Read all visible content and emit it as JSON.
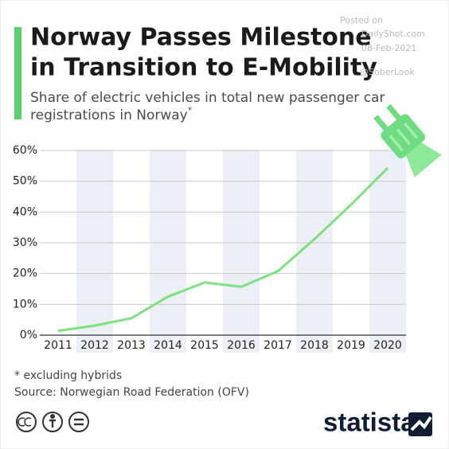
{
  "chart_data": {
    "type": "line",
    "title_lines": [
      "Norway Passes Milestone",
      "in Transition to E-Mobility"
    ],
    "subtitle_lines": [
      "Share of electric vehicles in total new passenger car",
      "registrations in Norway"
    ],
    "subtitle_marker": "*",
    "categories": [
      "2011",
      "2012",
      "2013",
      "2014",
      "2015",
      "2016",
      "2017",
      "2018",
      "2019",
      "2020"
    ],
    "values": [
      1.4,
      3.1,
      5.5,
      12.5,
      17.1,
      15.7,
      20.8,
      31.2,
      42.4,
      54.3
    ],
    "color": "#7fe07f",
    "ylim": [
      0,
      60
    ],
    "yticks": [
      {
        "value": 0,
        "label": "0%"
      },
      {
        "value": 10,
        "label": "10%"
      },
      {
        "value": 20,
        "label": "20%"
      },
      {
        "value": 30,
        "label": "30%"
      },
      {
        "value": 40,
        "label": "40%"
      },
      {
        "value": 50,
        "label": "50%"
      },
      {
        "value": 60,
        "label": "60%"
      }
    ],
    "grid": true,
    "footnote": "* excluding hybrids",
    "source": "Source: Norwegian Road Federation (OFV)"
  },
  "watermark": [
    "Posted on",
    "DailyShot.com",
    "08-Feb-2021",
    "@SoberLook"
  ],
  "logo": "statista"
}
